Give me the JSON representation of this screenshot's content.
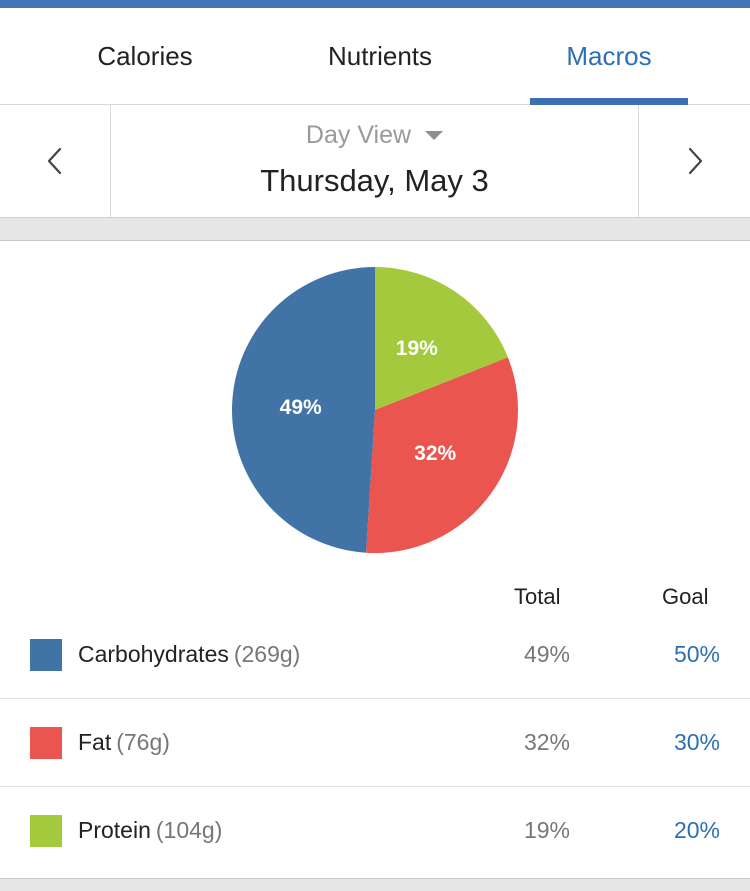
{
  "tabs": [
    {
      "label": "Calories",
      "active": false
    },
    {
      "label": "Nutrients",
      "active": false
    },
    {
      "label": "Macros",
      "active": true
    }
  ],
  "date_nav": {
    "view_label": "Day View",
    "date": "Thursday, May 3",
    "prev_icon": "chevron-left-icon",
    "next_icon": "chevron-right-icon",
    "dropdown_icon": "caret-down-icon"
  },
  "colors": {
    "accent": "#3f74b8",
    "active_tab": "#2d6fb4",
    "carbohydrates": "#4273a6",
    "fat": "#ea5550",
    "protein": "#a5c93c"
  },
  "table": {
    "headers": {
      "total": "Total",
      "goal": "Goal"
    },
    "rows": [
      {
        "name": "Carbohydrates",
        "grams": "(269g)",
        "total": "49%",
        "goal": "50%",
        "color": "#4273a6"
      },
      {
        "name": "Fat",
        "grams": "(76g)",
        "total": "32%",
        "goal": "30%",
        "color": "#ea5550"
      },
      {
        "name": "Protein",
        "grams": "(104g)",
        "total": "19%",
        "goal": "20%",
        "color": "#a5c93c"
      }
    ]
  },
  "chart_data": {
    "type": "pie",
    "categories": [
      "Protein",
      "Fat",
      "Carbohydrates"
    ],
    "values": [
      19,
      32,
      49
    ],
    "labels": [
      "19%",
      "32%",
      "49%"
    ],
    "colors": [
      "#a5c93c",
      "#ea5550",
      "#4273a6"
    ],
    "start_angle_deg": 0,
    "direction": "clockwise"
  }
}
